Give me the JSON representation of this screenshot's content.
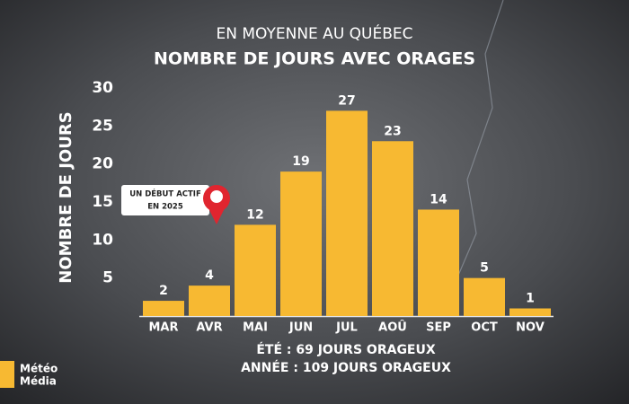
{
  "chart_data": {
    "type": "bar",
    "subtitle": "EN MOYENNE AU QUÉBEC",
    "title": "NOMBRE DE JOURS AVEC ORAGES",
    "y_label": "NOMBRE DE JOURS",
    "categories": [
      "MAR",
      "AVR",
      "MAI",
      "JUN",
      "JUL",
      "AOÛ",
      "SEP",
      "OCT",
      "NOV"
    ],
    "values": [
      2,
      4,
      12,
      19,
      27,
      23,
      14,
      5,
      1
    ],
    "color": "#f7b932",
    "ylim": [
      0,
      30
    ],
    "yticks": [
      5,
      10,
      15,
      20,
      25,
      30
    ],
    "annotation": [
      "UN DÉBUT ACTIF",
      "EN 2025"
    ],
    "notes": [
      "ÉTÉ : 69 JOURS ORAGEUX",
      "ANNÉE : 109 JOURS ORAGEUX"
    ],
    "logo": [
      "Météo",
      "Média"
    ]
  }
}
